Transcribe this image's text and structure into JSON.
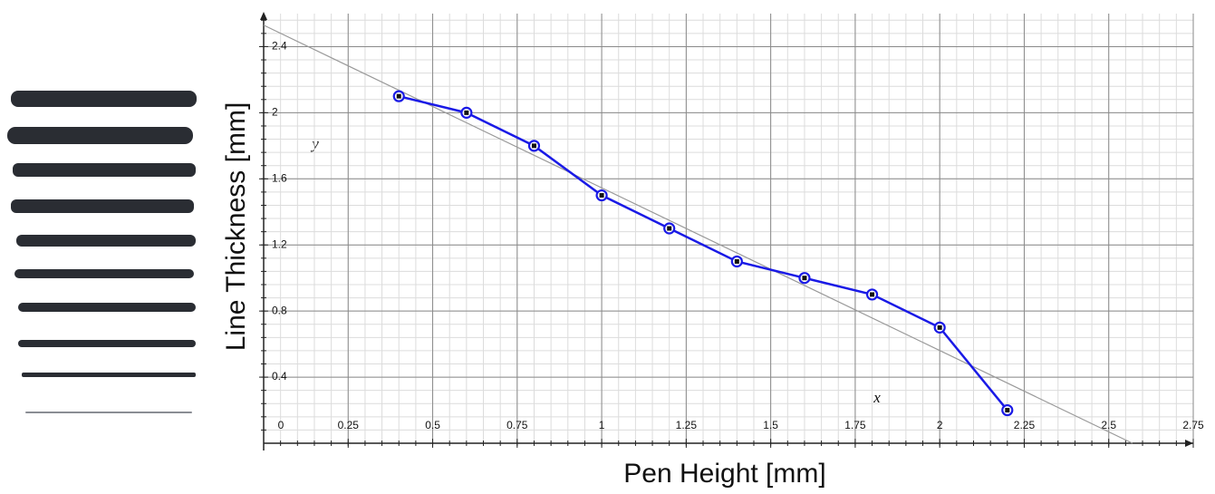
{
  "chart_data": {
    "type": "line",
    "x_label": "Pen Height [mm]",
    "y_label": "Line Thickness [mm]",
    "annotations": [
      "y",
      "x"
    ],
    "x": [
      0.4,
      0.6,
      0.8,
      1.0,
      1.2,
      1.4,
      1.6,
      1.8,
      2.0,
      2.2
    ],
    "series": [
      {
        "color": "#1a1ae6",
        "values": [
          2.1,
          2.0,
          1.8,
          1.5,
          1.3,
          1.1,
          1.0,
          0.9,
          0.7,
          0.2
        ]
      }
    ],
    "trendline": {
      "color": "#999999",
      "x": [
        0,
        2.57
      ],
      "values": [
        2.53,
        0
      ]
    },
    "xlim": [
      0,
      2.75
    ],
    "ylim": [
      0,
      2.6
    ],
    "xticks": [
      0,
      0.25,
      0.5,
      0.75,
      1,
      1.25,
      1.5,
      1.75,
      2,
      2.25,
      2.5,
      2.75
    ],
    "yticks": [
      0.4,
      0.8,
      1.2,
      1.6,
      2,
      2.4
    ],
    "grid": true,
    "minor_grid_divisions": 5
  }
}
